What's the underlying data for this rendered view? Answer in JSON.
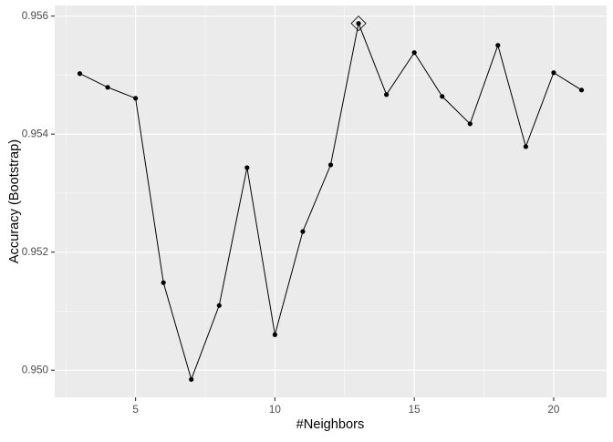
{
  "chart_data": {
    "type": "line",
    "x_label": "#Neighbors",
    "y_label": "Accuracy (Bootstrap)",
    "x": [
      3,
      4,
      5,
      6,
      7,
      8,
      9,
      10,
      11,
      12,
      13,
      14,
      15,
      16,
      17,
      18,
      19,
      20,
      21
    ],
    "series": [
      {
        "color": "#000000",
        "values": [
          0.955026,
          0.954793,
          0.954608,
          0.951483,
          0.949844,
          0.951097,
          0.953432,
          0.950602,
          0.95235,
          0.953479,
          0.955876,
          0.95467,
          0.955381,
          0.954639,
          0.954175,
          0.955505,
          0.953788,
          0.955041,
          0.954747
        ]
      }
    ],
    "highlight_x": 13,
    "xlim": [
      2.1,
      21.9
    ],
    "xticks": [
      5,
      10,
      15,
      20
    ],
    "ylim": [
      0.94954,
      0.95618
    ],
    "yticks": [
      {
        "value": 0.95,
        "label": "0.950"
      },
      0.952,
      0.954,
      0.956
    ],
    "grid": true,
    "minor_grid": true
  }
}
